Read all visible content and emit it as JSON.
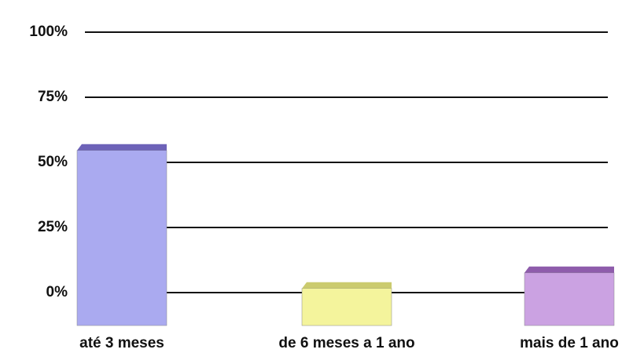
{
  "chart_data": {
    "type": "bar",
    "categories": [
      "até 3 meses",
      "de 6 meses a 1 ano",
      "mais de 1 ano"
    ],
    "values": [
      57,
      4,
      10
    ],
    "colors": [
      "#aaaaf0",
      "#f4f49c",
      "#cba2e2"
    ],
    "top_colors": [
      "#6d62b8",
      "#cbcb6e",
      "#8e5cab"
    ],
    "ylim": [
      0,
      100
    ],
    "yticks": [
      {
        "value": 0,
        "label": "0%"
      },
      {
        "value": 25,
        "label": "25%"
      },
      {
        "value": 50,
        "label": "50%"
      },
      {
        "value": 75,
        "label": "75%"
      },
      {
        "value": 100,
        "label": "100%"
      }
    ],
    "grid": true
  }
}
